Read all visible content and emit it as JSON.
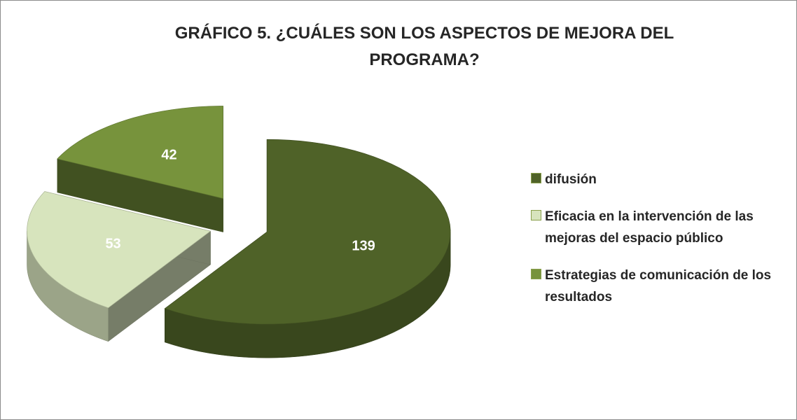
{
  "chart_data": {
    "type": "pie3d",
    "title": "GRÁFICO 5. ¿CUÁLES SON LOS ASPECTOS DE MEJORA DEL PROGRAMA?",
    "categories": [
      "difusión",
      "Eficacia en la intervención de las mejoras del espacio público",
      "Estrategias de comunicación de los resultados"
    ],
    "values": [
      139,
      53,
      42
    ],
    "colors": [
      "#4f6228",
      "#d7e4bd",
      "#77933c"
    ],
    "legend": "right"
  }
}
